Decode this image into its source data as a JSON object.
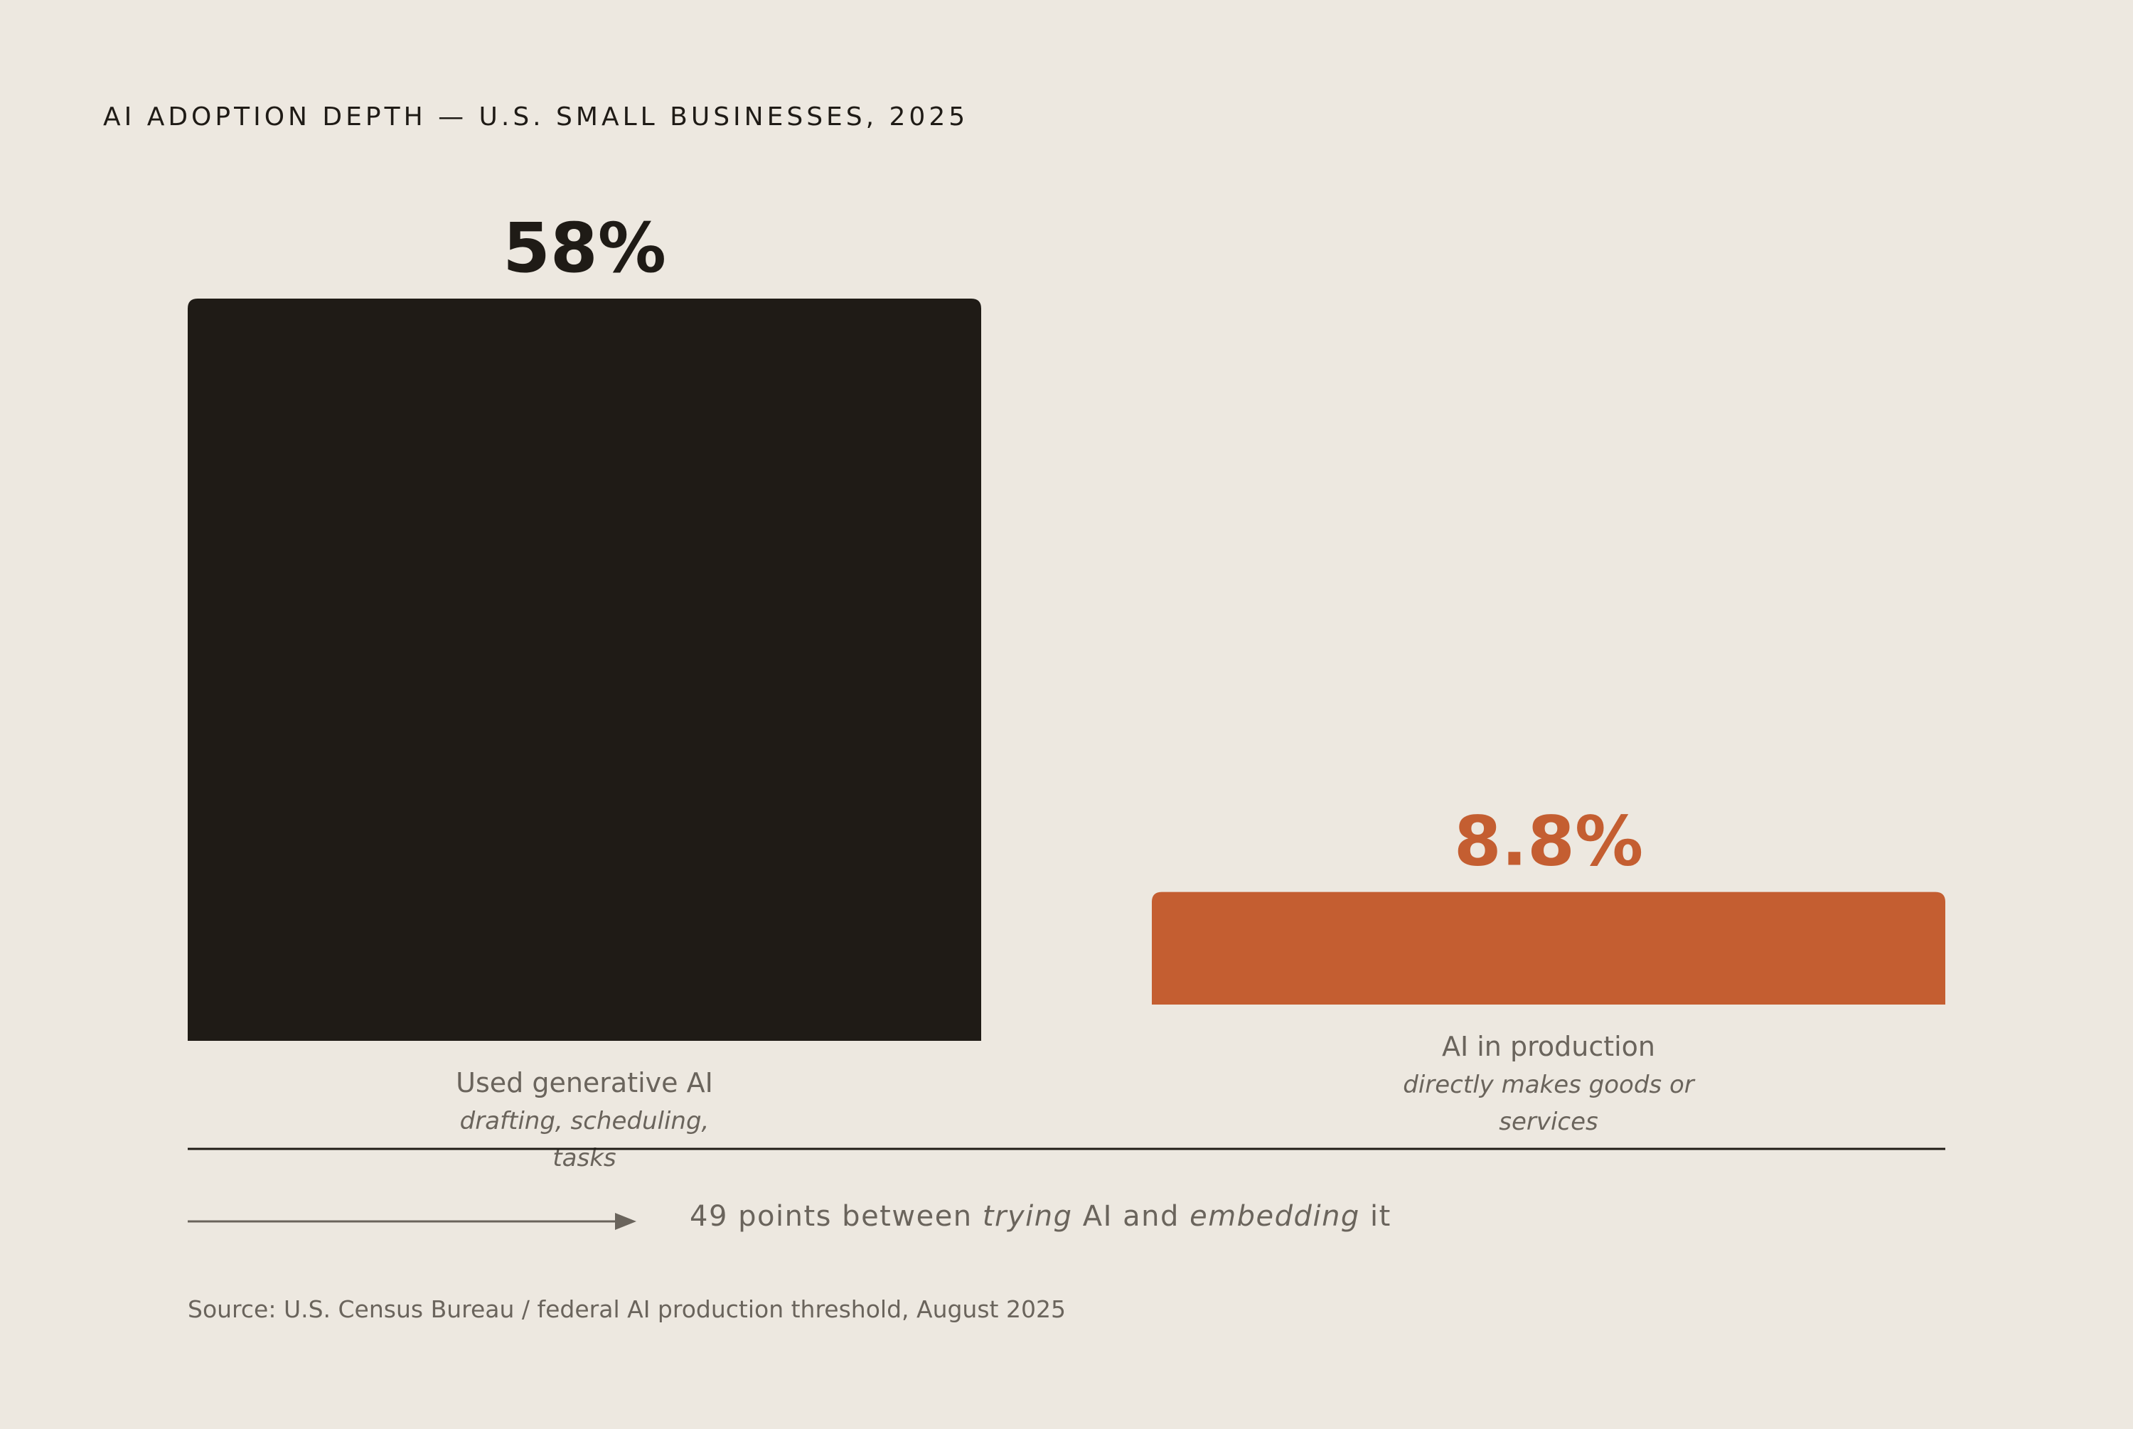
{
  "title": "AI ADOPTION DEPTH — U.S. SMALL BUSINESSES, 2025",
  "colors": {
    "background": "#ede8e0",
    "primary_bar": "#1f1b16",
    "accent_bar": "#c45e31",
    "muted_text": "#6a645c"
  },
  "chart_data": {
    "type": "bar",
    "title": "AI ADOPTION DEPTH — U.S. SMALL BUSINESSES, 2025",
    "categories": [
      "Used generative AI",
      "AI in production"
    ],
    "subtitles": [
      "drafting, scheduling, tasks",
      "directly makes goods or services"
    ],
    "values": [
      58,
      8.8
    ],
    "value_labels": [
      "58%",
      "8.8%"
    ],
    "bar_colors": [
      "#1f1b16",
      "#c45e31"
    ],
    "ylim": [
      0,
      58
    ],
    "grid": false,
    "legend": "none",
    "xlabel": "",
    "ylabel": ""
  },
  "annotation": {
    "prefix": "49 points between ",
    "em1": "trying",
    "middle": " AI and ",
    "em2": "embedding",
    "suffix": " it"
  },
  "source": "Source: U.S. Census Bureau / federal AI production threshold, August 2025"
}
